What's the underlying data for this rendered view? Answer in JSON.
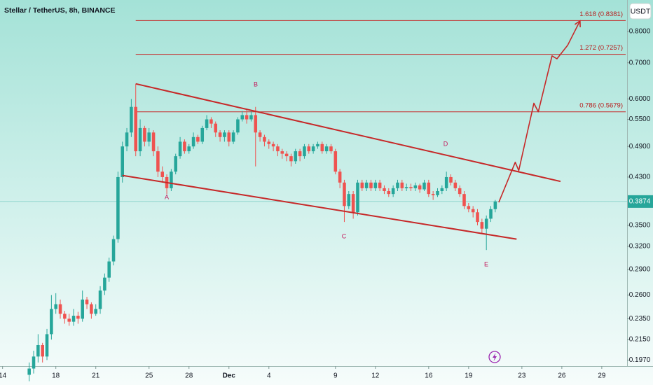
{
  "chart_data": {
    "type": "candlestick",
    "title": "Stellar / TetherUS, 8h, BINANCE",
    "currency": "USDT",
    "log_scale": true,
    "up_color": "#26a69a",
    "down_color": "#ef5350",
    "line_color": "#c62828",
    "xlim": [
      -6.58,
      134.7
    ],
    "ylim": [
      0.192,
      0.915
    ],
    "xticks": [
      {
        "value": -6,
        "label": "14"
      },
      {
        "value": 6,
        "label": "18"
      },
      {
        "value": 15,
        "label": "21"
      },
      {
        "value": 27,
        "label": "25"
      },
      {
        "value": 36,
        "label": "28"
      },
      {
        "value": 45,
        "label": "Dec"
      },
      {
        "value": 54,
        "label": "4"
      },
      {
        "value": 69,
        "label": "9"
      },
      {
        "value": 78,
        "label": "12"
      },
      {
        "value": 90,
        "label": "16"
      },
      {
        "value": 99,
        "label": "19"
      },
      {
        "value": 111,
        "label": "23"
      },
      {
        "value": 120,
        "label": "26"
      },
      {
        "value": 129,
        "label": "29"
      }
    ],
    "yticks": [
      {
        "value": 0.197,
        "label": "0.1970"
      },
      {
        "value": 0.215,
        "label": "0.2150"
      },
      {
        "value": 0.235,
        "label": "0.2350"
      },
      {
        "value": 0.26,
        "label": "0.2600"
      },
      {
        "value": 0.29,
        "label": "0.2900"
      },
      {
        "value": 0.32,
        "label": "0.3200"
      },
      {
        "value": 0.35,
        "label": "0.3500"
      },
      {
        "value": 0.43,
        "label": "0.4300"
      },
      {
        "value": 0.49,
        "label": "0.4900"
      },
      {
        "value": 0.55,
        "label": "0.5500"
      },
      {
        "value": 0.6,
        "label": "0.6000"
      },
      {
        "value": 0.7,
        "label": "0.7000"
      },
      {
        "value": 0.8,
        "label": "0.8000"
      }
    ],
    "candles": {
      "open": [
        0.185,
        0.19,
        0.2,
        0.21,
        0.2,
        0.22,
        0.245,
        0.25,
        0.24,
        0.235,
        0.232,
        0.238,
        0.235,
        0.255,
        0.25,
        0.24,
        0.245,
        0.265,
        0.28,
        0.3,
        0.33,
        0.43,
        0.49,
        0.52,
        0.58,
        0.48,
        0.53,
        0.5,
        0.52,
        0.48,
        0.44,
        0.43,
        0.41,
        0.44,
        0.47,
        0.5,
        0.48,
        0.49,
        0.51,
        0.5,
        0.53,
        0.55,
        0.54,
        0.52,
        0.51,
        0.52,
        0.5,
        0.52,
        0.55,
        0.56,
        0.55,
        0.56,
        0.52,
        0.51,
        0.5,
        0.495,
        0.49,
        0.48,
        0.475,
        0.47,
        0.46,
        0.48,
        0.47,
        0.49,
        0.48,
        0.49,
        0.495,
        0.48,
        0.49,
        0.48,
        0.44,
        0.42,
        0.38,
        0.4,
        0.37,
        0.42,
        0.41,
        0.42,
        0.41,
        0.42,
        0.41,
        0.405,
        0.4,
        0.41,
        0.42,
        0.41,
        0.412,
        0.41,
        0.415,
        0.408,
        0.42,
        0.4,
        0.398,
        0.405,
        0.41,
        0.43,
        0.42,
        0.41,
        0.4,
        0.38,
        0.375,
        0.37,
        0.355,
        0.345,
        0.36,
        0.375
      ],
      "high": [
        0.195,
        0.205,
        0.22,
        0.212,
        0.225,
        0.26,
        0.262,
        0.255,
        0.243,
        0.24,
        0.245,
        0.242,
        0.265,
        0.258,
        0.252,
        0.25,
        0.27,
        0.285,
        0.305,
        0.335,
        0.44,
        0.5,
        0.53,
        0.6,
        0.64,
        0.55,
        0.535,
        0.53,
        0.525,
        0.49,
        0.45,
        0.435,
        0.445,
        0.475,
        0.51,
        0.505,
        0.495,
        0.52,
        0.515,
        0.535,
        0.56,
        0.555,
        0.545,
        0.525,
        0.525,
        0.525,
        0.525,
        0.555,
        0.57,
        0.575,
        0.57,
        0.58,
        0.525,
        0.515,
        0.505,
        0.5,
        0.495,
        0.485,
        0.48,
        0.475,
        0.485,
        0.485,
        0.495,
        0.495,
        0.495,
        0.5,
        0.5,
        0.495,
        0.495,
        0.485,
        0.445,
        0.425,
        0.405,
        0.405,
        0.425,
        0.425,
        0.425,
        0.425,
        0.425,
        0.425,
        0.415,
        0.41,
        0.415,
        0.425,
        0.425,
        0.418,
        0.418,
        0.42,
        0.418,
        0.425,
        0.425,
        0.405,
        0.41,
        0.415,
        0.44,
        0.435,
        0.425,
        0.415,
        0.405,
        0.385,
        0.38,
        0.375,
        0.36,
        0.365,
        0.38,
        0.39
      ],
      "low": [
        0.18,
        0.186,
        0.195,
        0.195,
        0.197,
        0.215,
        0.24,
        0.235,
        0.23,
        0.228,
        0.228,
        0.23,
        0.232,
        0.245,
        0.235,
        0.238,
        0.24,
        0.26,
        0.275,
        0.295,
        0.325,
        0.42,
        0.48,
        0.51,
        0.47,
        0.47,
        0.49,
        0.49,
        0.47,
        0.43,
        0.42,
        0.4,
        0.405,
        0.435,
        0.465,
        0.475,
        0.475,
        0.485,
        0.495,
        0.495,
        0.525,
        0.53,
        0.51,
        0.5,
        0.5,
        0.49,
        0.495,
        0.515,
        0.545,
        0.54,
        0.545,
        0.45,
        0.5,
        0.49,
        0.485,
        0.48,
        0.47,
        0.465,
        0.46,
        0.45,
        0.455,
        0.46,
        0.465,
        0.475,
        0.475,
        0.485,
        0.475,
        0.475,
        0.475,
        0.435,
        0.41,
        0.355,
        0.375,
        0.36,
        0.365,
        0.405,
        0.405,
        0.405,
        0.405,
        0.405,
        0.4,
        0.395,
        0.395,
        0.405,
        0.405,
        0.405,
        0.405,
        0.405,
        0.402,
        0.405,
        0.395,
        0.39,
        0.395,
        0.4,
        0.405,
        0.415,
        0.405,
        0.395,
        0.375,
        0.37,
        0.362,
        0.35,
        0.338,
        0.315,
        0.355,
        0.37
      ],
      "close": [
        0.19,
        0.2,
        0.21,
        0.2,
        0.22,
        0.245,
        0.25,
        0.24,
        0.235,
        0.232,
        0.238,
        0.235,
        0.255,
        0.25,
        0.24,
        0.245,
        0.265,
        0.28,
        0.3,
        0.33,
        0.43,
        0.49,
        0.52,
        0.58,
        0.48,
        0.53,
        0.5,
        0.52,
        0.48,
        0.44,
        0.43,
        0.41,
        0.44,
        0.47,
        0.5,
        0.48,
        0.49,
        0.51,
        0.5,
        0.53,
        0.55,
        0.54,
        0.52,
        0.51,
        0.52,
        0.5,
        0.52,
        0.55,
        0.56,
        0.55,
        0.56,
        0.52,
        0.51,
        0.5,
        0.495,
        0.49,
        0.48,
        0.475,
        0.47,
        0.46,
        0.48,
        0.47,
        0.49,
        0.48,
        0.49,
        0.495,
        0.48,
        0.49,
        0.48,
        0.44,
        0.42,
        0.38,
        0.4,
        0.37,
        0.42,
        0.41,
        0.42,
        0.41,
        0.42,
        0.41,
        0.405,
        0.4,
        0.41,
        0.42,
        0.41,
        0.412,
        0.41,
        0.415,
        0.408,
        0.42,
        0.4,
        0.398,
        0.405,
        0.41,
        0.43,
        0.42,
        0.41,
        0.4,
        0.38,
        0.375,
        0.37,
        0.355,
        0.345,
        0.36,
        0.375,
        0.3874
      ]
    },
    "fib_x": 24,
    "fib_levels": [
      {
        "value": 0.8381,
        "label": "1.618 (0.8381)"
      },
      {
        "value": 0.7257,
        "label": "1.272 (0.7257)"
      },
      {
        "value": 0.5679,
        "label": "0.786 (0.5679)"
      }
    ],
    "trendlines": [
      {
        "x": [
          24,
          119.7
        ],
        "y": [
          0.64,
          0.422
        ]
      },
      {
        "x": [
          21,
          109.8
        ],
        "y": [
          0.433,
          0.33
        ]
      }
    ],
    "projection": {
      "x": [
        105.8,
        109.5,
        110.3,
        113.7,
        114.7,
        117.8,
        118.9,
        121.3,
        124.1
      ],
      "y": [
        0.386,
        0.458,
        0.442,
        0.589,
        0.568,
        0.721,
        0.712,
        0.754,
        0.837
      ]
    },
    "annotations": [
      "A",
      "B",
      "C",
      "D",
      "E"
    ]
  }
}
